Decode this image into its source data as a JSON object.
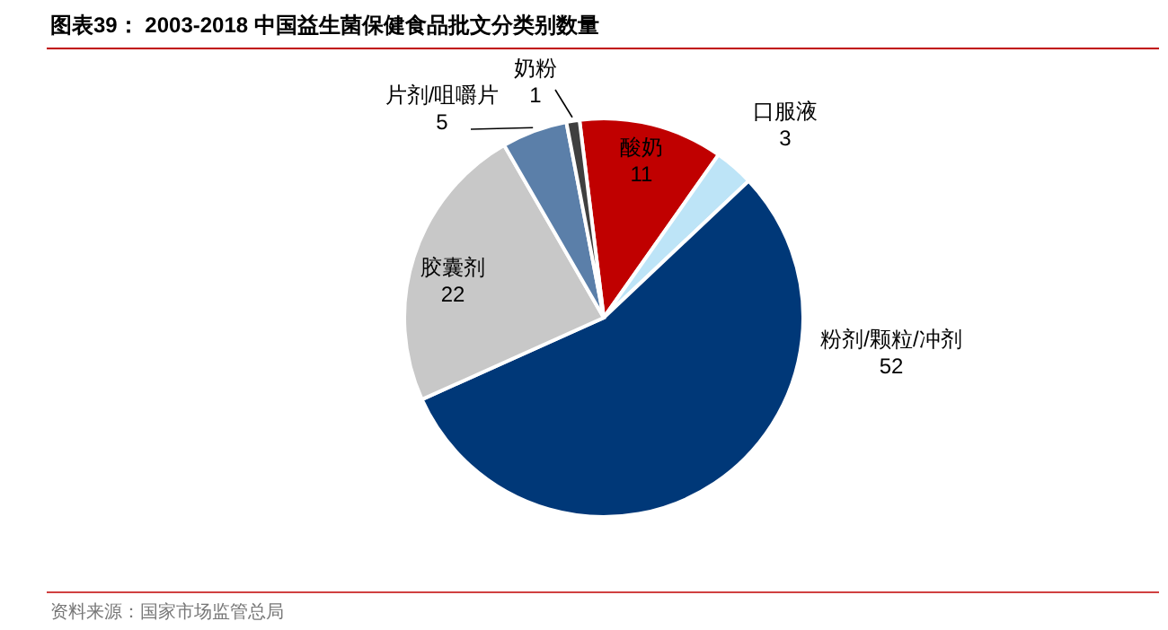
{
  "chart_data": {
    "type": "pie",
    "title": "图表39：  2003-2018 中国益生菌保健食品批文分类别数量",
    "categories": [
      "酸奶",
      "口服液",
      "粉剂/颗粒/冲剂",
      "胶囊剂",
      "片剂/咀嚼片",
      "奶粉"
    ],
    "values": [
      11,
      3,
      52,
      22,
      5,
      1
    ],
    "colors": [
      "#c00000",
      "#bde4f7",
      "#003878",
      "#c8c8c8",
      "#5b7fa9",
      "#3f3f3f"
    ],
    "data_labels": true,
    "annotations": [
      "资料来源：国家市场监管总局"
    ]
  }
}
